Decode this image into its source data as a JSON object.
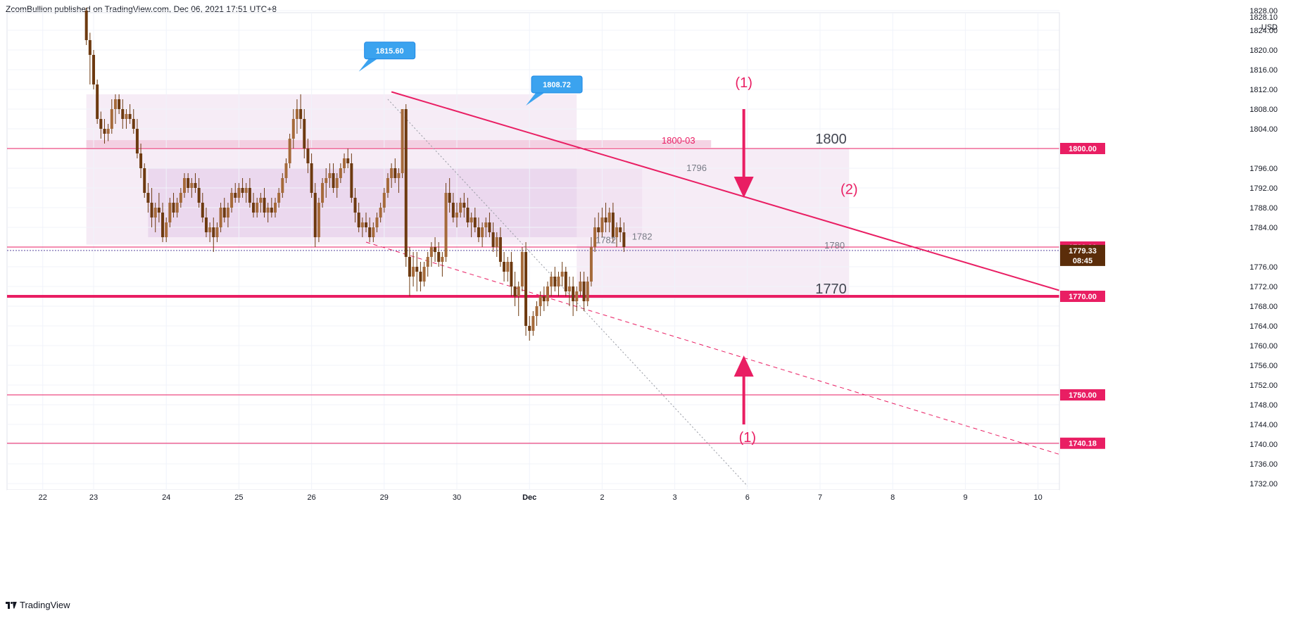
{
  "header": {
    "publisher": "ZcomBullion published on TradingView.com, Dec 06, 2021 17:51 UTC+8"
  },
  "footer": {
    "brand": "TradingView"
  },
  "colors": {
    "pink": "#e91e63",
    "candle": "#6d3a10",
    "zone_light": "#f3e6f3",
    "zone_mid": "#e9d3ec",
    "zone_band": "#f3c9dd",
    "callout": "#3ba3ef",
    "countdown_bg": "#5b2d0a"
  },
  "chart_data": {
    "type": "candlestick",
    "symbol_unit": "USD",
    "ylim": [
      1731,
      1829
    ],
    "y_ticks": [
      1732,
      1736,
      1740,
      1744,
      1748,
      1752,
      1756,
      1760,
      1764,
      1768,
      1772,
      1776,
      1784,
      1788,
      1792,
      1796,
      1804,
      1808,
      1812,
      1816,
      1820,
      1824,
      1828
    ],
    "y_top_partial_label": "1828.10",
    "x_ticks": [
      {
        "label": "22",
        "t": -0.7
      },
      {
        "label": "23",
        "t": 0
      },
      {
        "label": "24",
        "t": 1
      },
      {
        "label": "25",
        "t": 2
      },
      {
        "label": "26",
        "t": 3
      },
      {
        "label": "29",
        "t": 4
      },
      {
        "label": "30",
        "t": 5
      },
      {
        "label": "Dec",
        "t": 6
      },
      {
        "label": "2",
        "t": 7
      },
      {
        "label": "3",
        "t": 8
      },
      {
        "label": "6",
        "t": 9
      },
      {
        "label": "7",
        "t": 10
      },
      {
        "label": "8",
        "t": 11
      },
      {
        "label": "9",
        "t": 12
      },
      {
        "label": "10",
        "t": 13
      }
    ],
    "price_tags": [
      {
        "label": "1800.00",
        "value": 1800
      },
      {
        "label": "1780.00",
        "value": 1780
      },
      {
        "label": "1770.00",
        "value": 1770
      },
      {
        "label": "1750.00",
        "value": 1750
      },
      {
        "label": "1740.18",
        "value": 1740.18
      }
    ],
    "current_price": {
      "label": "1779.33",
      "value": 1779.3,
      "countdown": "08:45"
    },
    "horizontal_lines": [
      {
        "value": 1800,
        "style": "thin"
      },
      {
        "value": 1780,
        "style": "thin"
      },
      {
        "value": 1770,
        "style": "thick"
      },
      {
        "value": 1750,
        "style": "thin"
      },
      {
        "value": 1740.18,
        "style": "thin"
      }
    ],
    "trendlines": [
      {
        "name": "upper",
        "from": {
          "t": 4.1,
          "v": 1811.5
        },
        "to": {
          "t": 13.5,
          "v": 1770.3
        },
        "style": "solid"
      },
      {
        "name": "lower",
        "from": {
          "t": 3.75,
          "v": 1781
        },
        "to": {
          "t": 13.5,
          "v": 1737
        },
        "style": "dashed"
      },
      {
        "name": "dotted",
        "from": {
          "t": 4.05,
          "v": 1810
        },
        "to": {
          "t": 9.0,
          "v": 1731.5
        },
        "style": "dotted"
      }
    ],
    "zones": [
      {
        "from": {
          "t": -0.1,
          "v": 1811
        },
        "to": {
          "t": 6.65,
          "v": 1780.5
        },
        "tone": "light"
      },
      {
        "from": {
          "t": 0.75,
          "v": 1796
        },
        "to": {
          "t": 7.55,
          "v": 1782
        },
        "tone": "mid"
      },
      {
        "from": {
          "t": 6.65,
          "v": 1800
        },
        "to": {
          "t": 10.4,
          "v": 1769.5
        },
        "tone": "light"
      },
      {
        "from": {
          "t": -0.1,
          "v": 1801.7
        },
        "to": {
          "t": 8.5,
          "v": 1800.2
        },
        "tone": "band"
      }
    ],
    "text_labels": [
      {
        "text": "1800-03",
        "t": 8.05,
        "v": 1801,
        "size": 13,
        "color": "pink"
      },
      {
        "text": "1800",
        "t": 10.15,
        "v": 1801,
        "size": 20,
        "color": "dark"
      },
      {
        "text": "1796",
        "t": 8.3,
        "v": 1795.4,
        "size": 13,
        "color": "gray"
      },
      {
        "text": "1782",
        "t": 7.55,
        "v": 1781.5,
        "size": 13,
        "color": "gray"
      },
      {
        "text": "1782",
        "t": 7.05,
        "v": 1780.8,
        "size": 13,
        "color": "gray"
      },
      {
        "text": "1780",
        "t": 10.2,
        "v": 1779.7,
        "size": 13,
        "color": "gray"
      },
      {
        "text": "1770",
        "t": 10.15,
        "v": 1770.6,
        "size": 20,
        "color": "dark"
      },
      {
        "text": "(1)",
        "t": 8.95,
        "v": 1812.4,
        "size": 20,
        "color": "pink"
      },
      {
        "text": "(2)",
        "t": 10.4,
        "v": 1790.8,
        "size": 20,
        "color": "pink"
      },
      {
        "text": "(1)",
        "t": 9.0,
        "v": 1740.4,
        "size": 20,
        "color": "pink"
      }
    ],
    "arrows": [
      {
        "direction": "down",
        "t": 8.95,
        "v_tail": 1808,
        "v_head": 1790
      },
      {
        "direction": "up",
        "t": 8.95,
        "v_tail": 1744,
        "v_head": 1758
      }
    ],
    "callouts": [
      {
        "label": "1815.60",
        "t": 3.65,
        "v": 1815.6
      },
      {
        "label": "1808.72",
        "t": 5.95,
        "v": 1808.72
      }
    ],
    "candles": [
      [
        -0.1,
        1828,
        1828.6,
        1821,
        1822
      ],
      [
        -0.05,
        1822,
        1823.5,
        1813,
        1819
      ],
      [
        0.0,
        1819,
        1820,
        1812,
        1813
      ],
      [
        0.05,
        1813,
        1814,
        1805,
        1806
      ],
      [
        0.1,
        1806,
        1807.5,
        1802,
        1804
      ],
      [
        0.15,
        1804,
        1806,
        1801,
        1803
      ],
      [
        0.2,
        1803,
        1805,
        1801.5,
        1804
      ],
      [
        0.25,
        1804,
        1810,
        1803,
        1808
      ],
      [
        0.3,
        1808,
        1811,
        1805,
        1810
      ],
      [
        0.35,
        1810,
        1811,
        1807,
        1808
      ],
      [
        0.4,
        1808,
        1810,
        1804,
        1806
      ],
      [
        0.45,
        1806,
        1808,
        1804,
        1807
      ],
      [
        0.5,
        1807,
        1809,
        1805,
        1806
      ],
      [
        0.55,
        1806,
        1808,
        1803,
        1804
      ],
      [
        0.6,
        1804,
        1806,
        1798,
        1799
      ],
      [
        0.65,
        1799,
        1801,
        1794,
        1796
      ],
      [
        0.7,
        1796,
        1797,
        1790,
        1791
      ],
      [
        0.75,
        1791,
        1793,
        1787,
        1789
      ],
      [
        0.8,
        1789,
        1792,
        1784,
        1786
      ],
      [
        0.85,
        1786,
        1789,
        1783,
        1788
      ],
      [
        0.9,
        1788,
        1791,
        1785,
        1787
      ],
      [
        0.95,
        1787,
        1789,
        1781,
        1782
      ],
      [
        1.0,
        1782,
        1786,
        1781,
        1785
      ],
      [
        1.05,
        1785,
        1790,
        1784,
        1789
      ],
      [
        1.1,
        1789,
        1791,
        1786,
        1787
      ],
      [
        1.15,
        1787,
        1790,
        1786,
        1789
      ],
      [
        1.2,
        1789,
        1792,
        1788,
        1791
      ],
      [
        1.25,
        1791,
        1795,
        1790,
        1794
      ],
      [
        1.3,
        1794,
        1795,
        1791,
        1792
      ],
      [
        1.35,
        1792,
        1794,
        1790,
        1793
      ],
      [
        1.4,
        1793,
        1795,
        1791,
        1792
      ],
      [
        1.45,
        1792,
        1794,
        1788,
        1789
      ],
      [
        1.5,
        1789,
        1791,
        1785,
        1786
      ],
      [
        1.55,
        1786,
        1788,
        1782,
        1783
      ],
      [
        1.6,
        1783,
        1785,
        1781,
        1784
      ],
      [
        1.65,
        1784,
        1786,
        1779,
        1782
      ],
      [
        1.7,
        1782,
        1785,
        1781,
        1784
      ],
      [
        1.75,
        1784,
        1789,
        1783,
        1788
      ],
      [
        1.8,
        1788,
        1790,
        1785,
        1786
      ],
      [
        1.85,
        1786,
        1789,
        1784,
        1788
      ],
      [
        1.9,
        1788,
        1792,
        1787,
        1791
      ],
      [
        1.95,
        1791,
        1793,
        1789,
        1790
      ],
      [
        2.0,
        1790,
        1793,
        1789,
        1792
      ],
      [
        2.05,
        1792,
        1794,
        1790,
        1791
      ],
      [
        2.1,
        1791,
        1793,
        1789,
        1792
      ],
      [
        2.15,
        1792,
        1794,
        1788,
        1789
      ],
      [
        2.2,
        1789,
        1791,
        1786,
        1787
      ],
      [
        2.25,
        1787,
        1790,
        1786,
        1789
      ],
      [
        2.3,
        1789,
        1791,
        1787,
        1790
      ],
      [
        2.35,
        1790,
        1792,
        1786,
        1787
      ],
      [
        2.4,
        1787,
        1789,
        1785,
        1788
      ],
      [
        2.45,
        1788,
        1790,
        1786,
        1787
      ],
      [
        2.5,
        1787,
        1790,
        1786,
        1789
      ],
      [
        2.55,
        1789,
        1792,
        1788,
        1791
      ],
      [
        2.6,
        1791,
        1795,
        1790,
        1794
      ],
      [
        2.65,
        1794,
        1798,
        1793,
        1797
      ],
      [
        2.7,
        1797,
        1803,
        1796,
        1802
      ],
      [
        2.75,
        1802,
        1808,
        1800,
        1806
      ],
      [
        2.8,
        1806,
        1810,
        1803,
        1808
      ],
      [
        2.85,
        1808,
        1811,
        1804,
        1806
      ],
      [
        2.9,
        1806,
        1808,
        1798,
        1800
      ],
      [
        2.95,
        1800,
        1802,
        1795,
        1797
      ],
      [
        3.0,
        1797,
        1799,
        1790,
        1791
      ],
      [
        3.05,
        1791,
        1793,
        1780,
        1782
      ],
      [
        3.1,
        1782,
        1790,
        1781,
        1789
      ],
      [
        3.15,
        1789,
        1794,
        1788,
        1793
      ],
      [
        3.2,
        1793,
        1796,
        1790,
        1794
      ],
      [
        3.25,
        1794,
        1797,
        1792,
        1795
      ],
      [
        3.3,
        1795,
        1797,
        1791,
        1792
      ],
      [
        3.35,
        1792,
        1795,
        1790,
        1794
      ],
      [
        3.4,
        1794,
        1797,
        1793,
        1796
      ],
      [
        3.45,
        1796,
        1799,
        1795,
        1798
      ],
      [
        3.5,
        1798,
        1800,
        1796,
        1797
      ],
      [
        3.55,
        1797,
        1799,
        1789,
        1790
      ],
      [
        3.6,
        1790,
        1792,
        1785,
        1787
      ],
      [
        3.65,
        1787,
        1789,
        1783,
        1784
      ],
      [
        3.7,
        1784,
        1786,
        1782,
        1785
      ],
      [
        3.75,
        1785,
        1787,
        1783,
        1784
      ],
      [
        3.8,
        1784,
        1786,
        1781,
        1782
      ],
      [
        3.85,
        1782,
        1785,
        1781,
        1784
      ],
      [
        3.9,
        1784,
        1787,
        1783,
        1786
      ],
      [
        3.95,
        1786,
        1789,
        1785,
        1788
      ],
      [
        4.0,
        1788,
        1792,
        1787,
        1791
      ],
      [
        4.05,
        1791,
        1795,
        1790,
        1794
      ],
      [
        4.1,
        1794,
        1797,
        1792,
        1796
      ],
      [
        4.15,
        1796,
        1798,
        1793,
        1794
      ],
      [
        4.2,
        1794,
        1796,
        1791,
        1795
      ],
      [
        4.25,
        1795,
        1808,
        1794,
        1808
      ],
      [
        4.3,
        1808,
        1809,
        1776,
        1778
      ],
      [
        4.35,
        1778,
        1780,
        1770,
        1774
      ],
      [
        4.4,
        1774,
        1779,
        1772,
        1776
      ],
      [
        4.45,
        1776,
        1779,
        1771,
        1775
      ],
      [
        4.5,
        1775,
        1777,
        1771,
        1773
      ],
      [
        4.55,
        1773,
        1777,
        1772,
        1776
      ],
      [
        4.6,
        1776,
        1779,
        1774,
        1778
      ],
      [
        4.65,
        1778,
        1781,
        1776,
        1780
      ],
      [
        4.7,
        1780,
        1782,
        1777,
        1779
      ],
      [
        4.75,
        1779,
        1781,
        1776,
        1777
      ],
      [
        4.8,
        1777,
        1779,
        1774,
        1778
      ],
      [
        4.85,
        1778,
        1793,
        1777,
        1791
      ],
      [
        4.9,
        1791,
        1794,
        1787,
        1789
      ],
      [
        4.95,
        1789,
        1791,
        1785,
        1786
      ],
      [
        5.0,
        1786,
        1789,
        1784,
        1787
      ],
      [
        5.05,
        1787,
        1790,
        1786,
        1789
      ],
      [
        5.1,
        1789,
        1791,
        1786,
        1788
      ],
      [
        5.15,
        1788,
        1790,
        1784,
        1785
      ],
      [
        5.2,
        1785,
        1787,
        1782,
        1786
      ],
      [
        5.25,
        1786,
        1788,
        1783,
        1784
      ],
      [
        5.3,
        1784,
        1786,
        1781,
        1782
      ],
      [
        5.35,
        1782,
        1785,
        1780,
        1784
      ],
      [
        5.4,
        1784,
        1786,
        1782,
        1785
      ],
      [
        5.45,
        1785,
        1787,
        1782,
        1783
      ],
      [
        5.5,
        1783,
        1785,
        1779,
        1780
      ],
      [
        5.55,
        1780,
        1783,
        1778,
        1782
      ],
      [
        5.6,
        1782,
        1784,
        1776,
        1777
      ],
      [
        5.65,
        1777,
        1779,
        1773,
        1775
      ],
      [
        5.7,
        1775,
        1778,
        1773,
        1777
      ],
      [
        5.75,
        1777,
        1779,
        1770,
        1772
      ],
      [
        5.8,
        1772,
        1775,
        1768,
        1770
      ],
      [
        5.85,
        1770,
        1773,
        1766,
        1772
      ],
      [
        5.9,
        1772,
        1780,
        1771,
        1779
      ],
      [
        5.95,
        1779,
        1781,
        1762,
        1764
      ],
      [
        6.0,
        1764,
        1766,
        1761,
        1763
      ],
      [
        6.05,
        1763,
        1767,
        1762,
        1766
      ],
      [
        6.1,
        1766,
        1769,
        1764,
        1768
      ],
      [
        6.15,
        1768,
        1771,
        1766,
        1770
      ],
      [
        6.2,
        1770,
        1772,
        1767,
        1769
      ],
      [
        6.25,
        1769,
        1773,
        1768,
        1772
      ],
      [
        6.3,
        1772,
        1775,
        1770,
        1774
      ],
      [
        6.35,
        1774,
        1776,
        1771,
        1772
      ],
      [
        6.4,
        1772,
        1775,
        1770,
        1774
      ],
      [
        6.45,
        1774,
        1777,
        1772,
        1775
      ],
      [
        6.5,
        1775,
        1776,
        1770,
        1771
      ],
      [
        6.55,
        1771,
        1774,
        1768,
        1772
      ],
      [
        6.6,
        1772,
        1774,
        1766,
        1769
      ],
      [
        6.65,
        1769,
        1772,
        1767,
        1771
      ],
      [
        6.7,
        1771,
        1775,
        1770,
        1773
      ],
      [
        6.75,
        1773,
        1775,
        1767,
        1769
      ],
      [
        6.8,
        1769,
        1774,
        1768,
        1773
      ],
      [
        6.85,
        1773,
        1782,
        1772,
        1780
      ],
      [
        6.9,
        1780,
        1786,
        1779,
        1784
      ],
      [
        6.95,
        1784,
        1787,
        1781,
        1783
      ],
      [
        7.0,
        1783,
        1788,
        1782,
        1786
      ],
      [
        7.05,
        1786,
        1789,
        1783,
        1785
      ],
      [
        7.1,
        1785,
        1788,
        1783,
        1787
      ],
      [
        7.15,
        1787,
        1789,
        1781,
        1782
      ],
      [
        7.2,
        1782,
        1785,
        1780,
        1784
      ],
      [
        7.25,
        1784,
        1786,
        1781,
        1783
      ],
      [
        7.3,
        1783,
        1785,
        1779,
        1780
      ]
    ]
  }
}
